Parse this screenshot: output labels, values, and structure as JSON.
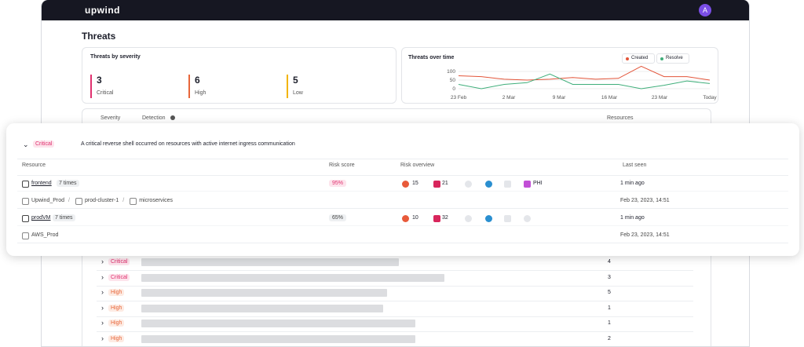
{
  "header": {
    "logo": "upwind",
    "avatar": "A"
  },
  "title": "Threats",
  "severity_card": {
    "title": "Threats by severity",
    "items": [
      {
        "count": 3,
        "label": "Critical",
        "color": "#e0316f"
      },
      {
        "count": 6,
        "label": "High",
        "color": "#e8663a"
      },
      {
        "count": 5,
        "label": "Low",
        "color": "#f2b400"
      }
    ]
  },
  "time_chart": {
    "type": "line",
    "title": "Threats over time",
    "x_labels": [
      "23 Feb",
      "2 Mar",
      "9 Mar",
      "16 Mar",
      "23 Mar",
      "Today"
    ],
    "ylim": [
      0,
      150
    ],
    "yticks": [
      0,
      50,
      100
    ],
    "series": [
      {
        "name": "Created",
        "color": "#e3553a",
        "values": [
          75,
          70,
          55,
          50,
          55,
          65,
          55,
          60,
          130,
          70,
          70,
          50
        ]
      },
      {
        "name": "Resolve",
        "color": "#3fae7a",
        "values": [
          25,
          0,
          25,
          35,
          85,
          25,
          25,
          25,
          0,
          20,
          45,
          30
        ]
      }
    ]
  },
  "table": {
    "columns": [
      "Severity",
      "Detection",
      "Resources"
    ],
    "rows": [
      {
        "severity": "Critical",
        "resources": 4
      },
      {
        "severity": "Critical",
        "resources": 3
      },
      {
        "severity": "High",
        "resources": 5
      },
      {
        "severity": "High",
        "resources": 1
      },
      {
        "severity": "High",
        "resources": 1
      },
      {
        "severity": "High",
        "resources": 2
      }
    ]
  },
  "popup": {
    "severity": "Critical",
    "description": "A critical reverse shell occurred on resources with active internet ingress communication",
    "columns": [
      "Resource",
      "Risk score",
      "Risk overview",
      "Last seen"
    ],
    "rows": [
      {
        "name": "frontend",
        "count": "7 times",
        "risk": "95%",
        "vulns": 15,
        "threats": 21,
        "tag": "PHI",
        "last_seen": "1 min ago",
        "path": [
          "Upwind_Prod",
          "prod-cluster-1",
          "microservices"
        ],
        "date": "Feb 23, 2023, 14:51"
      },
      {
        "name": "prodVM",
        "count": "7 times",
        "risk": "65%",
        "vulns": 10,
        "threats": 32,
        "last_seen": "1 min ago",
        "path": [
          "AWS_Prod"
        ],
        "date": "Feb 23, 2023, 14:51"
      }
    ]
  }
}
